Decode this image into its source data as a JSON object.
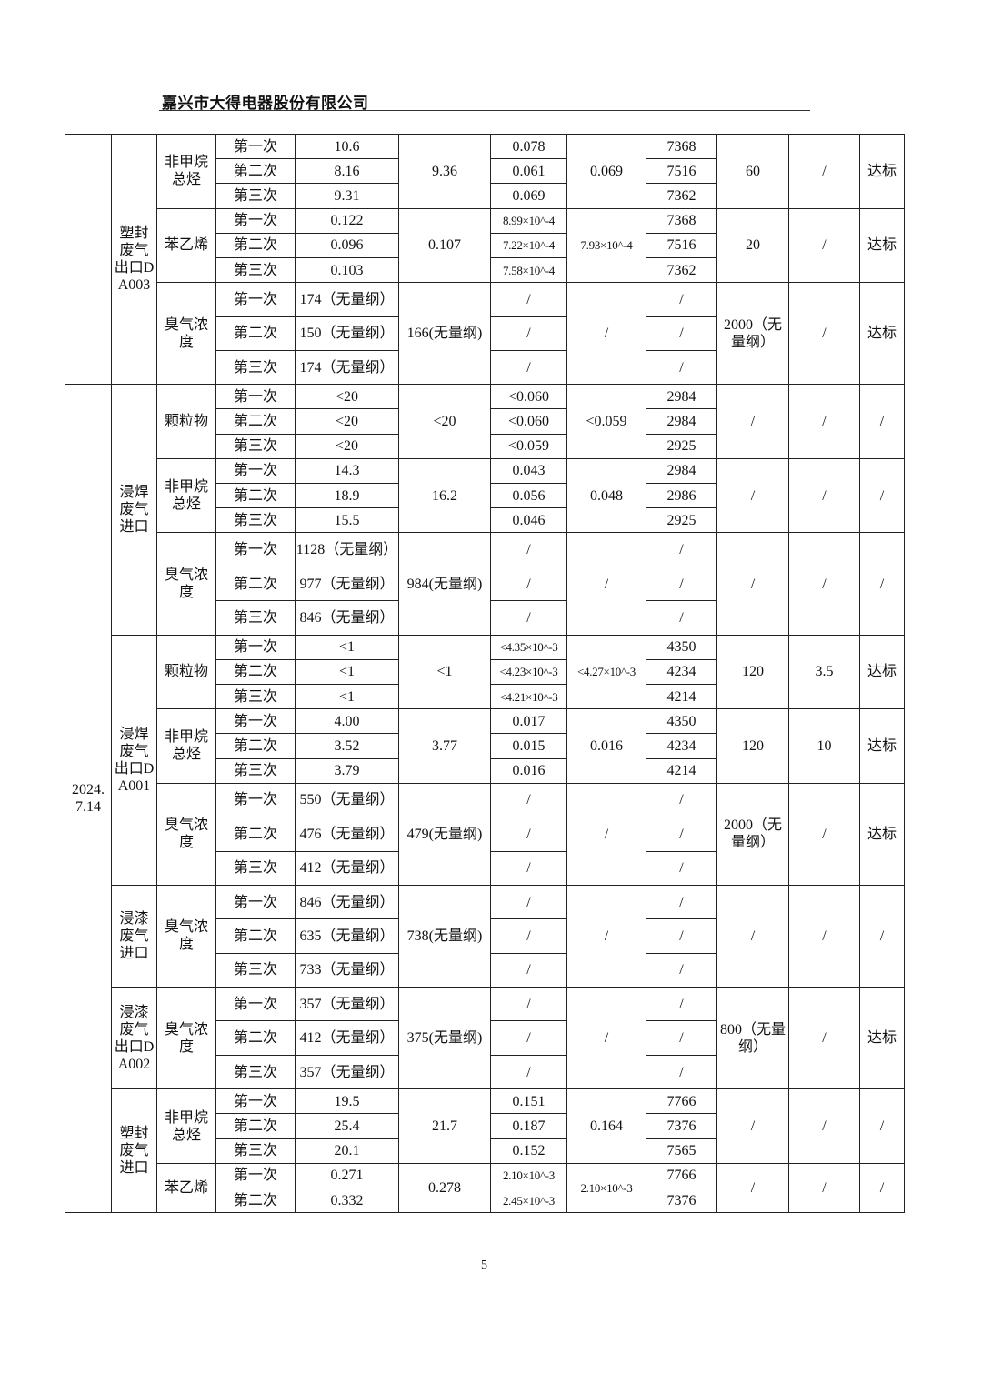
{
  "header": {
    "company": "嘉兴市大得电器股份有限公司"
  },
  "page_number": "5",
  "table": {
    "sections": [
      {
        "date": "",
        "locations": [
          {
            "name": "塑封废气出口DA003",
            "pollutants": [
              {
                "name": "非甲烷总烃",
                "avg_conc": "9.36",
                "avg_rate": "0.069",
                "limit_conc": "60",
                "limit_rate": "/",
                "result": "达标",
                "rows": [
                  {
                    "run": "第一次",
                    "conc": "10.6",
                    "rate": "0.078",
                    "flow": "7368"
                  },
                  {
                    "run": "第二次",
                    "conc": "8.16",
                    "rate": "0.061",
                    "flow": "7516"
                  },
                  {
                    "run": "第三次",
                    "conc": "9.31",
                    "rate": "0.069",
                    "flow": "7362"
                  }
                ]
              },
              {
                "name": "苯乙烯",
                "avg_conc": "0.107",
                "avg_rate": "7.93×10^-4",
                "limit_conc": "20",
                "limit_rate": "/",
                "result": "达标",
                "rows": [
                  {
                    "run": "第一次",
                    "conc": "0.122",
                    "rate": "8.99×10^-4",
                    "flow": "7368"
                  },
                  {
                    "run": "第二次",
                    "conc": "0.096",
                    "rate": "7.22×10^-4",
                    "flow": "7516"
                  },
                  {
                    "run": "第三次",
                    "conc": "0.103",
                    "rate": "7.58×10^-4",
                    "flow": "7362"
                  }
                ]
              },
              {
                "name": "臭气浓度",
                "avg_conc": "166(无量纲)",
                "avg_rate": "/",
                "limit_conc": "2000（无量纲）",
                "limit_rate": "/",
                "result": "达标",
                "rows": [
                  {
                    "run": "第一次",
                    "conc": "174（无量纲）",
                    "rate": "/",
                    "flow": "/"
                  },
                  {
                    "run": "第二次",
                    "conc": "150（无量纲）",
                    "rate": "/",
                    "flow": "/"
                  },
                  {
                    "run": "第三次",
                    "conc": "174（无量纲）",
                    "rate": "/",
                    "flow": "/"
                  }
                ]
              }
            ]
          }
        ]
      },
      {
        "date": "2024.7.14",
        "locations": [
          {
            "name": "浸焊废气进口",
            "pollutants": [
              {
                "name": "颗粒物",
                "avg_conc": "<20",
                "avg_rate": "<0.059",
                "limit_conc": "/",
                "limit_rate": "/",
                "result": "/",
                "rows": [
                  {
                    "run": "第一次",
                    "conc": "<20",
                    "rate": "<0.060",
                    "flow": "2984"
                  },
                  {
                    "run": "第二次",
                    "conc": "<20",
                    "rate": "<0.060",
                    "flow": "2984"
                  },
                  {
                    "run": "第三次",
                    "conc": "<20",
                    "rate": "<0.059",
                    "flow": "2925"
                  }
                ]
              },
              {
                "name": "非甲烷总烃",
                "avg_conc": "16.2",
                "avg_rate": "0.048",
                "limit_conc": "/",
                "limit_rate": "/",
                "result": "/",
                "rows": [
                  {
                    "run": "第一次",
                    "conc": "14.3",
                    "rate": "0.043",
                    "flow": "2984"
                  },
                  {
                    "run": "第二次",
                    "conc": "18.9",
                    "rate": "0.056",
                    "flow": "2986"
                  },
                  {
                    "run": "第三次",
                    "conc": "15.5",
                    "rate": "0.046",
                    "flow": "2925"
                  }
                ]
              },
              {
                "name": "臭气浓度",
                "avg_conc": "984(无量纲)",
                "avg_rate": "/",
                "limit_conc": "/",
                "limit_rate": "/",
                "result": "/",
                "rows": [
                  {
                    "run": "第一次",
                    "conc": "1128（无量纲）",
                    "rate": "/",
                    "flow": "/"
                  },
                  {
                    "run": "第二次",
                    "conc": "977（无量纲）",
                    "rate": "/",
                    "flow": "/"
                  },
                  {
                    "run": "第三次",
                    "conc": "846（无量纲）",
                    "rate": "/",
                    "flow": "/"
                  }
                ]
              }
            ]
          },
          {
            "name": "浸焊废气出口DA001",
            "pollutants": [
              {
                "name": "颗粒物",
                "avg_conc": "<1",
                "avg_rate": "<4.27×10^-3",
                "limit_conc": "120",
                "limit_rate": "3.5",
                "result": "达标",
                "rows": [
                  {
                    "run": "第一次",
                    "conc": "<1",
                    "rate": "<4.35×10^-3",
                    "flow": "4350"
                  },
                  {
                    "run": "第二次",
                    "conc": "<1",
                    "rate": "<4.23×10^-3",
                    "flow": "4234"
                  },
                  {
                    "run": "第三次",
                    "conc": "<1",
                    "rate": "<4.21×10^-3",
                    "flow": "4214"
                  }
                ]
              },
              {
                "name": "非甲烷总烃",
                "avg_conc": "3.77",
                "avg_rate": "0.016",
                "limit_conc": "120",
                "limit_rate": "10",
                "result": "达标",
                "rows": [
                  {
                    "run": "第一次",
                    "conc": "4.00",
                    "rate": "0.017",
                    "flow": "4350"
                  },
                  {
                    "run": "第二次",
                    "conc": "3.52",
                    "rate": "0.015",
                    "flow": "4234"
                  },
                  {
                    "run": "第三次",
                    "conc": "3.79",
                    "rate": "0.016",
                    "flow": "4214"
                  }
                ]
              },
              {
                "name": "臭气浓度",
                "avg_conc": "479(无量纲)",
                "avg_rate": "/",
                "limit_conc": "2000（无量纲）",
                "limit_rate": "/",
                "result": "达标",
                "rows": [
                  {
                    "run": "第一次",
                    "conc": "550（无量纲）",
                    "rate": "/",
                    "flow": "/"
                  },
                  {
                    "run": "第二次",
                    "conc": "476（无量纲）",
                    "rate": "/",
                    "flow": "/"
                  },
                  {
                    "run": "第三次",
                    "conc": "412（无量纲）",
                    "rate": "/",
                    "flow": "/"
                  }
                ]
              }
            ]
          },
          {
            "name": "浸漆废气进口",
            "pollutants": [
              {
                "name": "臭气浓度",
                "avg_conc": "738(无量纲)",
                "avg_rate": "/",
                "limit_conc": "/",
                "limit_rate": "/",
                "result": "/",
                "rows": [
                  {
                    "run": "第一次",
                    "conc": "846（无量纲）",
                    "rate": "/",
                    "flow": "/"
                  },
                  {
                    "run": "第二次",
                    "conc": "635（无量纲）",
                    "rate": "/",
                    "flow": "/"
                  },
                  {
                    "run": "第三次",
                    "conc": "733（无量纲）",
                    "rate": "/",
                    "flow": "/"
                  }
                ]
              }
            ]
          },
          {
            "name": "浸漆废气出口DA002",
            "pollutants": [
              {
                "name": "臭气浓度",
                "avg_conc": "375(无量纲)",
                "avg_rate": "/",
                "limit_conc": "800（无量纲）",
                "limit_rate": "/",
                "result": "达标",
                "rows": [
                  {
                    "run": "第一次",
                    "conc": "357（无量纲）",
                    "rate": "/",
                    "flow": "/"
                  },
                  {
                    "run": "第二次",
                    "conc": "412（无量纲）",
                    "rate": "/",
                    "flow": "/"
                  },
                  {
                    "run": "第三次",
                    "conc": "357（无量纲）",
                    "rate": "/",
                    "flow": "/"
                  }
                ]
              }
            ]
          },
          {
            "name": "塑封废气进口",
            "pollutants": [
              {
                "name": "非甲烷总烃",
                "avg_conc": "21.7",
                "avg_rate": "0.164",
                "limit_conc": "/",
                "limit_rate": "/",
                "result": "/",
                "rows": [
                  {
                    "run": "第一次",
                    "conc": "19.5",
                    "rate": "0.151",
                    "flow": "7766"
                  },
                  {
                    "run": "第二次",
                    "conc": "25.4",
                    "rate": "0.187",
                    "flow": "7376"
                  },
                  {
                    "run": "第三次",
                    "conc": "20.1",
                    "rate": "0.152",
                    "flow": "7565"
                  }
                ]
              },
              {
                "name": "苯乙烯",
                "avg_conc": "0.278",
                "avg_rate": "2.10×10^-3",
                "limit_conc": "/",
                "limit_rate": "/",
                "result": "/",
                "rows": [
                  {
                    "run": "第一次",
                    "conc": "0.271",
                    "rate": "2.10×10^-3",
                    "flow": "7766"
                  },
                  {
                    "run": "第二次",
                    "conc": "0.332",
                    "rate": "2.45×10^-3",
                    "flow": "7376"
                  }
                ]
              }
            ]
          }
        ]
      }
    ]
  }
}
